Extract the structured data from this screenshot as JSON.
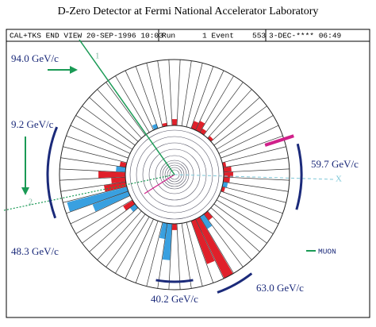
{
  "title": "D-Zero Detector at Fermi National Accelerator Laboratory",
  "header": {
    "view": "CAL+TKS END VIEW 20-SEP-1996 10:03",
    "run": "Run",
    "event": "1 Event",
    "number": "553",
    "date": "3-DEC-**** 06:49"
  },
  "labels": {
    "left_top": "94.0 GeV/c",
    "left_mid": "9.2 GeV/c",
    "right": "59.7 GeV/c",
    "left_bottom": "48.3 GeV/c",
    "bottom_right": "63.0 GeV/c",
    "bottom": "40.2 GeV/c"
  },
  "markers": {
    "track1": "1",
    "track2": "2",
    "axis": "X"
  },
  "legend": {
    "muon": "MUON"
  }
}
